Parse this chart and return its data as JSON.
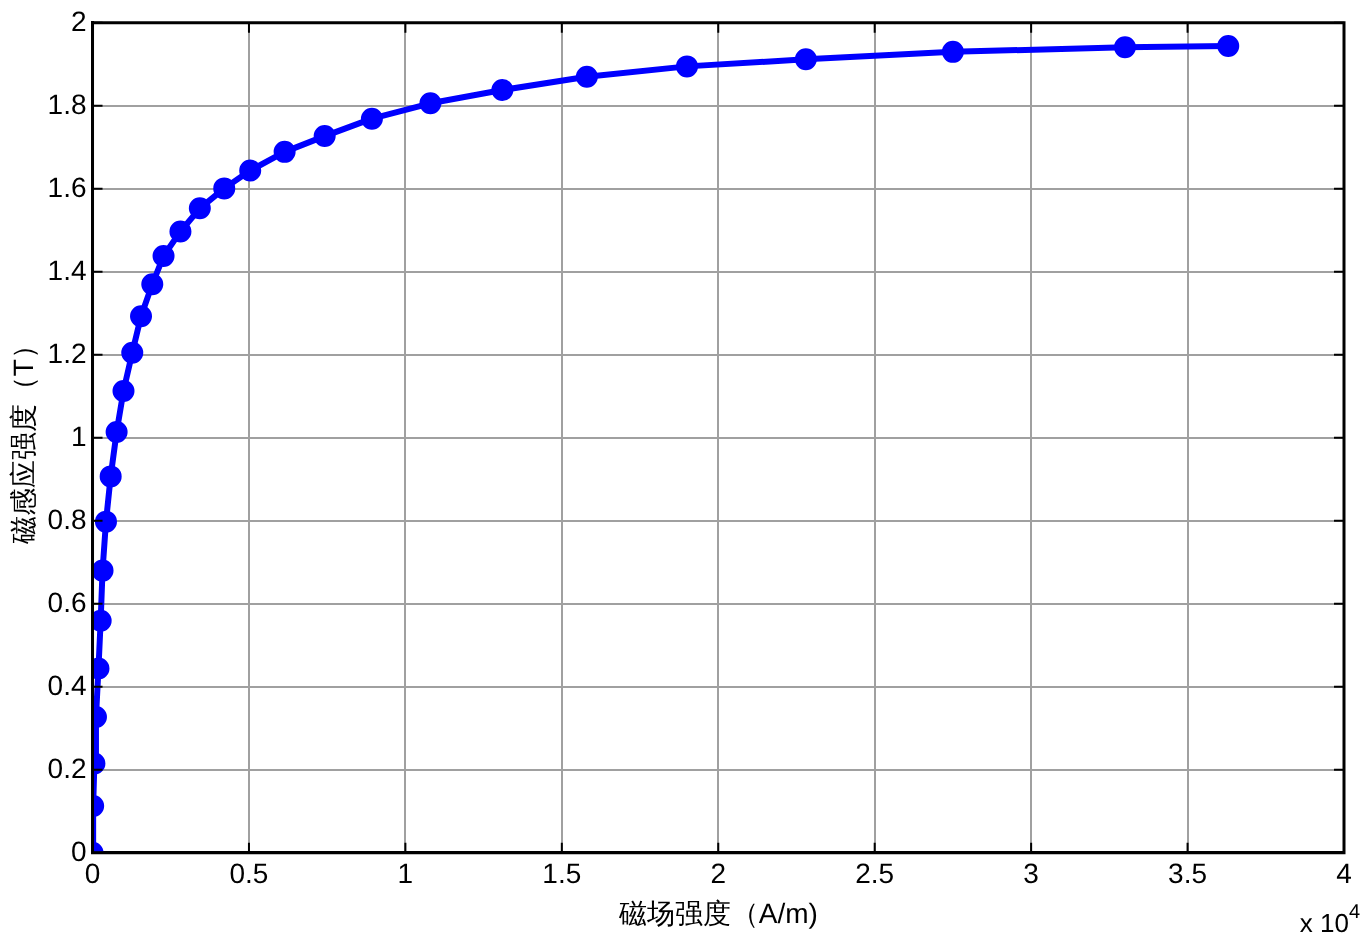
{
  "chart_data": {
    "type": "line",
    "xlabel": "磁场强度（A/m)",
    "ylabel": "磁感应强度（T）",
    "annotations": [
      "x 10$^{4}$"
    ],
    "x": [
      0,
      0.002,
      0.006,
      0.011,
      0.019,
      0.026,
      0.032,
      0.043,
      0.058,
      0.077,
      0.099,
      0.127,
      0.155,
      0.191,
      0.227,
      0.281,
      0.343,
      0.421,
      0.504,
      0.614,
      0.742,
      0.893,
      1.08,
      1.31,
      1.58,
      1.9,
      2.28,
      2.75,
      3.3,
      3.63
    ],
    "series": [
      {
        "color": "#0000ff",
        "values": [
          0,
          0.113,
          0.215,
          0.327,
          0.444,
          0.559,
          0.68,
          0.798,
          0.907,
          1.014,
          1.113,
          1.205,
          1.293,
          1.37,
          1.438,
          1.497,
          1.553,
          1.601,
          1.644,
          1.689,
          1.727,
          1.769,
          1.806,
          1.838,
          1.87,
          1.895,
          1.912,
          1.93,
          1.941,
          1.944
        ]
      }
    ],
    "xlim": [
      0,
      4
    ],
    "xticks": [
      0,
      0.5,
      1,
      1.5,
      2,
      2.5,
      3,
      3.5,
      4
    ],
    "ylim": [
      0,
      2
    ],
    "yticks": [
      0,
      0.2,
      0.4,
      0.6,
      0.8,
      1,
      1.2,
      1.4,
      1.6,
      1.8,
      2
    ],
    "grid": true,
    "legend": false,
    "marker": "circle",
    "line_style": "solid"
  }
}
